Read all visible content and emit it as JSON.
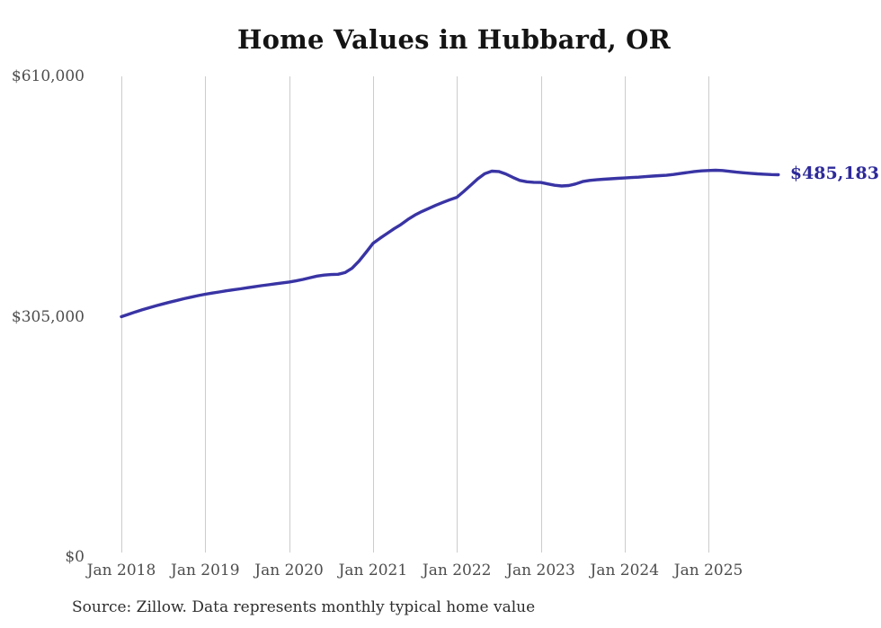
{
  "title": "Home Values in Hubbard, OR",
  "annotation": {
    "end_value_label": "$485,183"
  },
  "footer": {
    "source_note": "Source: Zillow. Data represents monthly typical home value"
  },
  "colors": {
    "line": "#3934a4",
    "end_label": "#2e2a99",
    "gridline": "#cccccc",
    "title_text": "#141414",
    "axis_text": "#4d4d4d",
    "source_text": "#2e2e2e",
    "background": "#ffffff"
  },
  "chart_data": {
    "type": "line",
    "title": "Home Values in Hubbard, OR",
    "xlabel": "",
    "ylabel": "",
    "grid": "vertical-only",
    "legend": "none",
    "ylim": [
      0,
      610000
    ],
    "y_ticks": [
      {
        "label": "$0",
        "value": 0
      },
      {
        "label": "$305,000",
        "value": 305000
      },
      {
        "label": "$610,000",
        "value": 610000
      }
    ],
    "x_tick_labels": [
      "Jan 2018",
      "Jan 2019",
      "Jan 2020",
      "Jan 2021",
      "Jan 2022",
      "Jan 2023",
      "Jan 2024",
      "Jan 2025"
    ],
    "x_start_month": "2018-01",
    "x_end_month": "2025-11",
    "end_value": 485183,
    "series": [
      {
        "name": "Monthly typical home value",
        "values": [
          305000,
          308000,
          311000,
          313800,
          316400,
          318900,
          321300,
          323600,
          325800,
          327900,
          329900,
          331800,
          333500,
          335000,
          336400,
          337800,
          339100,
          340400,
          341700,
          343000,
          344300,
          345500,
          346700,
          347900,
          349000,
          350500,
          352300,
          354500,
          356500,
          357800,
          358500,
          358800,
          361000,
          366500,
          375500,
          386500,
          398000,
          404500,
          410500,
          416500,
          422000,
          428500,
          434000,
          438500,
          442500,
          446500,
          450000,
          453500,
          456500,
          464000,
          472000,
          480000,
          486500,
          489700,
          489200,
          486200,
          481800,
          478000,
          476200,
          475600,
          475300,
          473500,
          471800,
          470900,
          471500,
          473500,
          476500,
          478000,
          478800,
          479400,
          480000,
          480600,
          481100,
          481600,
          482100,
          482800,
          483400,
          484000,
          484500,
          485500,
          486700,
          488000,
          489200,
          490000,
          490500,
          490800,
          490500,
          489500,
          488500,
          487700,
          487000,
          486300,
          485800,
          485400,
          485183
        ]
      }
    ]
  }
}
